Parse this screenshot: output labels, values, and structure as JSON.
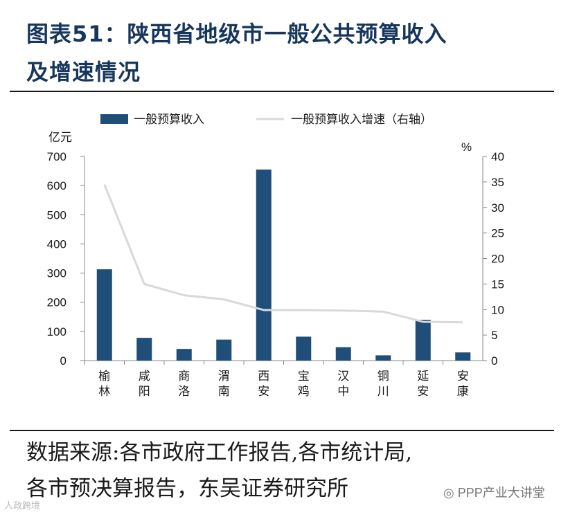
{
  "header": {
    "title_line1": "图表51：陕西省地级市一般公共预算收入",
    "title_line2": "及增速情况"
  },
  "chart_data": {
    "type": "bar",
    "categories": [
      "榆林",
      "咸阳",
      "商洛",
      "渭南",
      "西安",
      "宝鸡",
      "汉中",
      "铜川",
      "延安",
      "安康"
    ],
    "series": [
      {
        "name": "一般预算收入",
        "kind": "bar",
        "axis": "left",
        "color": "#1f4e79",
        "values": [
          313,
          78,
          40,
          72,
          655,
          82,
          46,
          18,
          140,
          28
        ]
      },
      {
        "name": "一般预算收入增速（右轴）",
        "kind": "line",
        "axis": "right",
        "color": "#d9d9d9",
        "values": [
          34.5,
          15.0,
          12.8,
          12.0,
          9.9,
          9.9,
          9.8,
          9.6,
          7.6,
          7.5
        ]
      }
    ],
    "y_left": {
      "label": "亿元",
      "min": 0,
      "max": 700,
      "ticks": [
        0,
        100,
        200,
        300,
        400,
        500,
        600,
        700
      ]
    },
    "y_right": {
      "label": "%",
      "min": 0,
      "max": 40,
      "ticks": [
        0,
        5,
        10,
        15,
        20,
        25,
        30,
        35,
        40
      ]
    },
    "legend_position": "top",
    "grid": false
  },
  "footer": {
    "source_line1": "数据来源:各市政府工作报告,各市统计局,",
    "source_line2": "各市预决算报告，东吴证券研究所",
    "watermark_right": "PPP产业大讲堂",
    "watermark_left": "人政跨境"
  }
}
